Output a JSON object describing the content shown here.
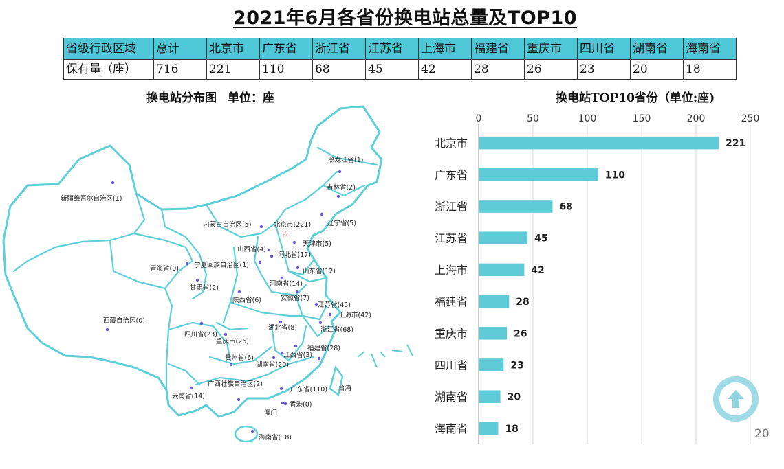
{
  "title": "2021年6月各省份换电站总量及TOP10",
  "table": {
    "headers": [
      "省级行政区域",
      "总计",
      "北京市",
      "广东省",
      "浙江省",
      "江苏省",
      "上海市",
      "福建省",
      "重庆市",
      "四川省",
      "湖南省",
      "海南省"
    ],
    "values": [
      "保有量（座）",
      "716",
      "221",
      "110",
      "68",
      "45",
      "42",
      "28",
      "26",
      "23",
      "20",
      "18"
    ]
  },
  "map": {
    "title": "换电站分布图",
    "unit": "单位：座",
    "labels": [
      "黑龙江省(1)",
      "吉林省(2)",
      "新疆维吾尔自治区(1)",
      "内蒙古自治区(5)",
      "北京市(221)",
      "辽宁省(5)",
      "天津市(5)",
      "山西省(4)",
      "河北省(17)",
      "宁夏回族自治区(1)",
      "青海省(0)",
      "山东省(12)",
      "甘肃省(2)",
      "河南省(14)",
      "陕西省(6)",
      "安徽省(7)",
      "江苏省(45)",
      "上海市(42)",
      "西藏自治区(0)",
      "湖北省(8)",
      "浙江省(68)",
      "四川省(23)",
      "重庆市(26)",
      "福建省(28)",
      "贵州省(6)",
      "江西省(3)",
      "湖南省(20)",
      "台湾",
      "广西壮族自治区(2)",
      "广东省(110)",
      "云南省(14)",
      "香港(0)",
      "澳门",
      "海南省(18)"
    ]
  },
  "chart_data": {
    "type": "bar",
    "orientation": "horizontal",
    "title": "换电站TOP10省份（单位:座)",
    "categories": [
      "北京市",
      "广东省",
      "浙江省",
      "江苏省",
      "上海市",
      "福建省",
      "重庆市",
      "四川省",
      "湖南省",
      "海南省"
    ],
    "values": [
      221,
      110,
      68,
      45,
      42,
      28,
      26,
      23,
      20,
      18
    ],
    "xlim": [
      0,
      250
    ],
    "ticks": [
      "0",
      "50",
      "100",
      "150",
      "200",
      "250"
    ],
    "gridlines": true,
    "bar_color": "#5fcbd8"
  },
  "page_number": "20"
}
